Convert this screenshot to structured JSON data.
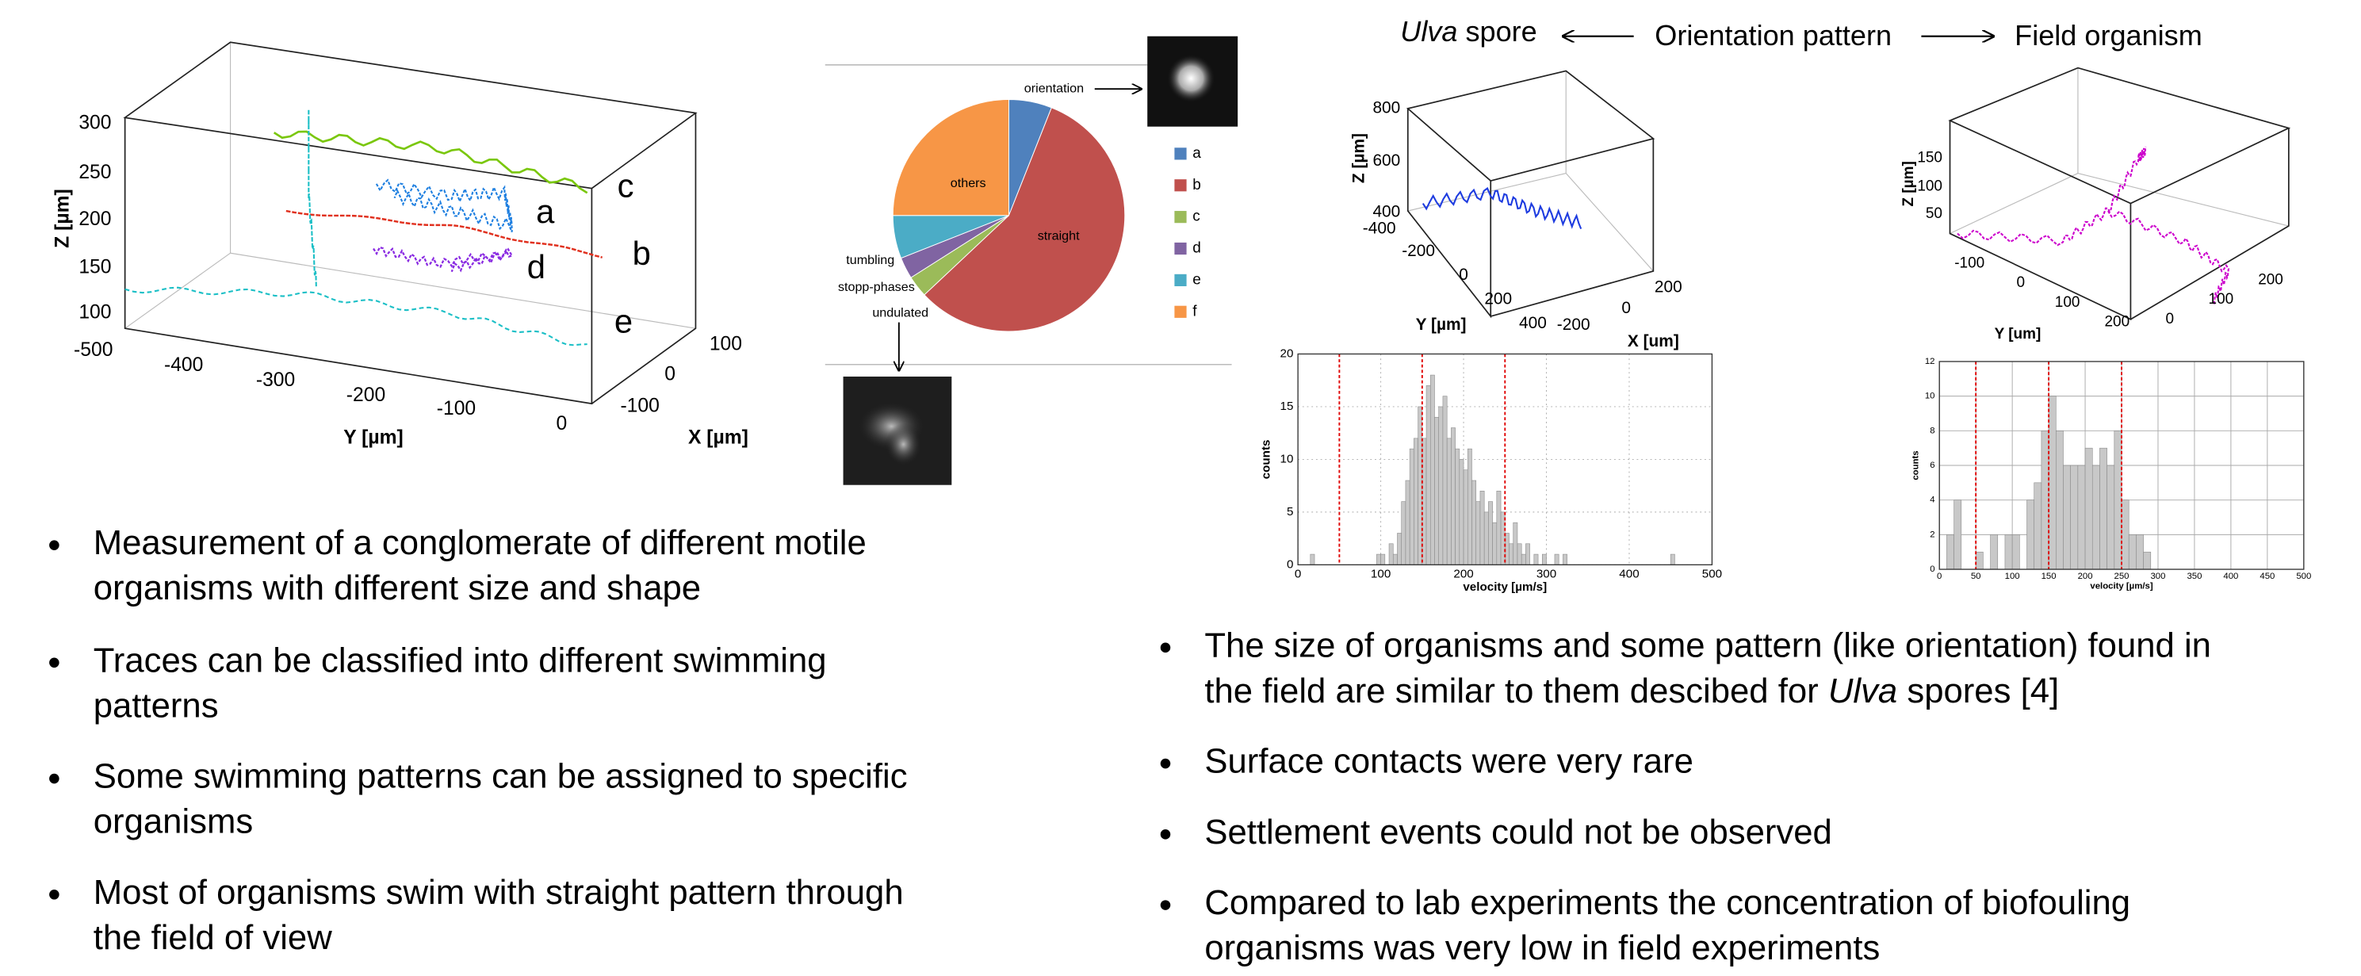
{
  "header": {
    "left": [
      {
        "text": "Ulva",
        "italic": true
      },
      " spore"
    ],
    "center": "Orientation pattern",
    "right": "Field organism"
  },
  "left_plot": {
    "z_label": "Z [µm]",
    "y_label": "Y [µm]",
    "x_label": "X [µm]",
    "z_ticks": [
      300,
      250,
      200,
      150,
      100
    ],
    "y_ticks": [
      -500,
      -400,
      -300,
      -200,
      -100,
      0
    ],
    "x_ticks": [
      100,
      0,
      -100
    ],
    "trace_labels": [
      "a",
      "b",
      "c",
      "d",
      "e"
    ]
  },
  "ulva_plot": {
    "z_label": "Z [µm]",
    "y_label": "Y [µm]",
    "x_label": "X [um]",
    "z_ticks": [
      800,
      600,
      400
    ],
    "y_ticks": [
      -400,
      -200,
      0,
      200,
      400
    ],
    "x_ticks": [
      -200,
      0,
      200
    ]
  },
  "field_plot": {
    "z_label": "Z [µm]",
    "y_label": "Y [um]",
    "z_ticks": [
      150,
      100,
      50
    ],
    "y_ticks": [
      -100,
      0,
      100,
      200
    ],
    "x_ticks": [
      0,
      100,
      200
    ]
  },
  "chart_data": [
    {
      "type": "pie",
      "categories": [
        "orientation",
        "straight",
        "undulated",
        "stopp-phases",
        "tumbling",
        "others"
      ],
      "values": [
        6,
        57,
        3,
        3,
        6,
        25
      ],
      "colors": [
        "#4f81bd",
        "#c0504d",
        "#9bbb59",
        "#8064a2",
        "#4bacc6",
        "#f79646"
      ],
      "legend": [
        "a",
        "b",
        "c",
        "d",
        "e",
        "f"
      ]
    },
    {
      "type": "histogram",
      "bins": [
        10,
        15,
        20,
        25,
        30,
        35,
        40,
        45,
        50,
        55,
        60,
        65,
        70,
        75,
        80,
        85,
        90,
        95,
        100,
        105,
        110,
        115,
        120,
        125,
        130,
        135,
        140,
        145,
        150,
        155,
        160,
        165,
        170,
        175,
        180,
        185,
        190,
        195,
        200,
        205,
        210,
        215,
        220,
        225,
        230,
        235,
        240,
        245,
        250,
        255,
        260,
        265,
        270,
        275,
        280,
        285,
        290,
        295,
        300,
        305,
        310,
        315,
        320,
        325,
        330,
        335,
        340,
        345,
        350,
        355,
        360,
        365,
        370,
        375,
        380,
        385,
        390,
        395,
        400,
        405,
        410,
        415,
        420,
        425,
        430,
        435,
        440,
        445,
        450,
        455,
        460
      ],
      "values": [
        0,
        1,
        0,
        0,
        0,
        0,
        0,
        0,
        0,
        0,
        0,
        0,
        0,
        0,
        0,
        0,
        0,
        1,
        1,
        0,
        2,
        1,
        3,
        6,
        8,
        11,
        12,
        15,
        12,
        17,
        18,
        14,
        15,
        16,
        12,
        13,
        11,
        10,
        9,
        11,
        8,
        6,
        7,
        5,
        6,
        4,
        7,
        5,
        3,
        2,
        4,
        2,
        1,
        2,
        0,
        1,
        0,
        1,
        0,
        0,
        1,
        0,
        1,
        0,
        0,
        0,
        0,
        0,
        0,
        0,
        0,
        0,
        0,
        0,
        0,
        0,
        0,
        0,
        0,
        0,
        0,
        0,
        0,
        0,
        0,
        0,
        0,
        0,
        1,
        0
      ],
      "color": "#c8c8c8",
      "xlim": [
        0,
        500
      ],
      "xticks": [
        0,
        100,
        200,
        300,
        400,
        500
      ],
      "ylim": [
        0,
        20
      ],
      "yticks": [
        0,
        5,
        10,
        15,
        20
      ],
      "xlabel": "velocity [µm/s]",
      "ylabel": "counts",
      "markers": [
        50,
        150,
        250
      ],
      "marker_color": "#e00000",
      "grid": true
    },
    {
      "type": "histogram",
      "bins": [
        0,
        10,
        20,
        30,
        40,
        50,
        60,
        70,
        80,
        90,
        100,
        110,
        120,
        130,
        140,
        150,
        160,
        170,
        180,
        190,
        200,
        210,
        220,
        230,
        240,
        250,
        260,
        270,
        280,
        290,
        300
      ],
      "values": [
        0,
        2,
        4,
        0,
        0,
        1,
        0,
        2,
        0,
        2,
        2,
        0,
        4,
        5,
        8,
        10,
        8,
        6,
        6,
        6,
        7,
        6,
        7,
        6,
        8,
        4,
        2,
        2,
        1,
        0
      ],
      "color": "#c8c8c8",
      "xlim": [
        0,
        500
      ],
      "xticks": [
        0,
        50,
        100,
        150,
        200,
        250,
        300,
        350,
        400,
        450,
        500
      ],
      "ylim": [
        0,
        12
      ],
      "yticks": [
        0,
        2,
        4,
        6,
        8,
        10,
        12
      ],
      "xlabel": "velocity [µm/s]",
      "ylabel": "counts",
      "markers": [
        50,
        150,
        250
      ],
      "marker_color": "#e00000",
      "grid": true
    }
  ],
  "bullets_left": [
    {
      "lines": [
        "Measurement of a conglomerate of different motile",
        "organisms with different size and shape"
      ]
    },
    {
      "lines": [
        "Traces can be classified into different swimming",
        "patterns"
      ]
    },
    {
      "lines": [
        "Some swimming patterns can be assigned to specific",
        "organisms"
      ]
    },
    {
      "lines": [
        "Most of organisms swim with straight pattern through",
        "the field of view"
      ]
    }
  ],
  "bullets_right": [
    {
      "lines": [
        "The size of organisms and some pattern (like orientation) found in",
        [
          "the field are similar to them descibed for ",
          {
            "text": "Ulva",
            "italic": true
          },
          " spores [4]"
        ]
      ]
    },
    {
      "lines": [
        "Surface contacts were very rare"
      ]
    },
    {
      "lines": [
        "Settlement events could not be observed"
      ]
    },
    {
      "lines": [
        "Compared to lab experiments the concentration of biofouling",
        "organisms was very low in field experiments"
      ]
    }
  ]
}
